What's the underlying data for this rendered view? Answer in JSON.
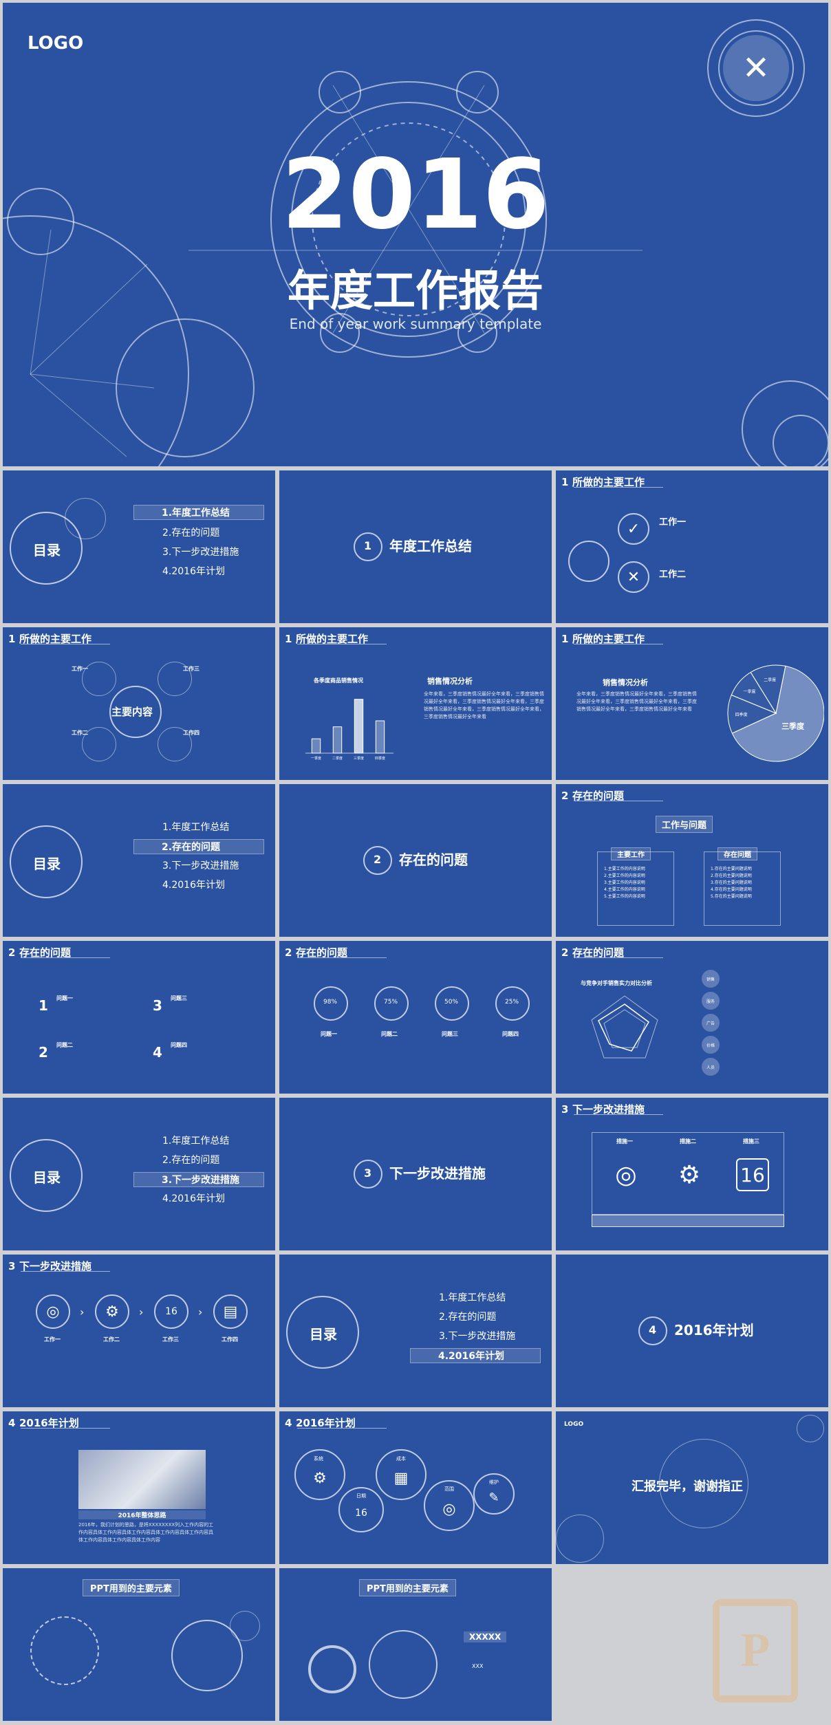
{
  "cover": {
    "logo": "LOGO",
    "year": "2016",
    "title": "年度工作报告",
    "subtitle": "End of year work summary template"
  },
  "toc": {
    "title": "目录",
    "items": [
      "1.年度工作总结",
      "2.存在的问题",
      "3.下一步改进措施",
      "4.2016年计划"
    ]
  },
  "sections": {
    "s1": {
      "num": "1",
      "title": "年度工作总结"
    },
    "s2": {
      "num": "2",
      "title": "存在的问题"
    },
    "s3": {
      "num": "3",
      "title": "下一步改进措施"
    },
    "s4": {
      "num": "4",
      "title": "2016年计划"
    }
  },
  "headers": {
    "main_work": "所做的主要工作",
    "problems": "存在的问题",
    "next_steps": "下一步改进措施",
    "plan": "2016年计划"
  },
  "slide3": {
    "work1": "工作一",
    "work2": "工作二"
  },
  "slide4": {
    "center": "主要内容",
    "w1": "工作一",
    "w2": "工作二",
    "w3": "工作三",
    "w4": "工作四"
  },
  "slide5": {
    "chart_title": "各季度商品销售情况",
    "heading": "销售情况分析",
    "text": "全年来看，三季度销售情况最好全年来看，三季度销售情况最好全年来看，三季度销售情况最好全年来看，三季度销售情况最好全年来看，三季度销售情况最好全年来看，三季度销售情况最好全年来看"
  },
  "slide6": {
    "heading": "销售情况分析",
    "text": "全年来看，三季度销售情况最好全年来看，三季度销售情况最好全年来看，三季度销售情况最好全年来看，三季度销售情况最好全年来看，三季度销售情况最好全年来看"
  },
  "slide9": {
    "top": "工作与问题",
    "left": "主要工作",
    "right": "存在问题",
    "left_items": [
      "1.主要工作的内容说明",
      "2.主要工作的内容说明",
      "3.主要工作的内容说明",
      "4.主要工作的内容说明",
      "5.主要工作的内容说明"
    ],
    "right_items": [
      "1.存在的主要问题说明",
      "2.存在的主要问题说明",
      "3.存在的主要问题说明",
      "4.存在的主要问题说明",
      "5.存在的主要问题说明"
    ]
  },
  "slide10": {
    "items": [
      {
        "n": "1",
        "label": "问题一"
      },
      {
        "n": "2",
        "label": "问题二"
      },
      {
        "n": "3",
        "label": "问题三"
      },
      {
        "n": "4",
        "label": "问题四"
      }
    ]
  },
  "slide11": {
    "items": [
      {
        "pct": "98%",
        "label": "问题一"
      },
      {
        "pct": "75%",
        "label": "问题二"
      },
      {
        "pct": "50%",
        "label": "问题三"
      },
      {
        "pct": "25%",
        "label": "问题四"
      }
    ]
  },
  "slide12": {
    "title": "与竞争对手销售实力对比分析",
    "tags": [
      "销售",
      "服务",
      "广告",
      "价格",
      "人员"
    ]
  },
  "slide14": {
    "cols": [
      "措施一",
      "措施二",
      "措施三"
    ]
  },
  "slide15": {
    "steps": [
      "工作一",
      "工作二",
      "工作三",
      "工作四"
    ]
  },
  "slide18": {
    "caption": "2016年整体思路",
    "text": "2016年，我们计划的思路，是将XXXXXXXX列入工作内容的工作内容具体工作内容具体工作内容具体工作内容具体工作内容具体工作内容具体工作内容具体工作内容"
  },
  "slide19": {
    "items": [
      "系统",
      "成本",
      "日期",
      "范围",
      "维护"
    ]
  },
  "slide20": {
    "logo": "LOGO",
    "title": "汇报完毕，谢谢指正"
  },
  "slide21": {
    "title": "PPT用到的主要元素"
  },
  "slide22": {
    "title": "PPT用到的主要元素",
    "label1": "XXXXX",
    "label2": "XXX"
  },
  "chart_data": [
    {
      "type": "bar",
      "title": "各季度商品销售情况",
      "categories": [
        "一季度",
        "二季度",
        "三季度",
        "四季度"
      ],
      "values": [
        1.2,
        2.2,
        4.5,
        2.7
      ]
    },
    {
      "type": "pie",
      "categories": [
        "三季度",
        "四季度",
        "一季度",
        "二季度"
      ],
      "values": [
        65,
        13,
        10,
        12
      ]
    }
  ]
}
